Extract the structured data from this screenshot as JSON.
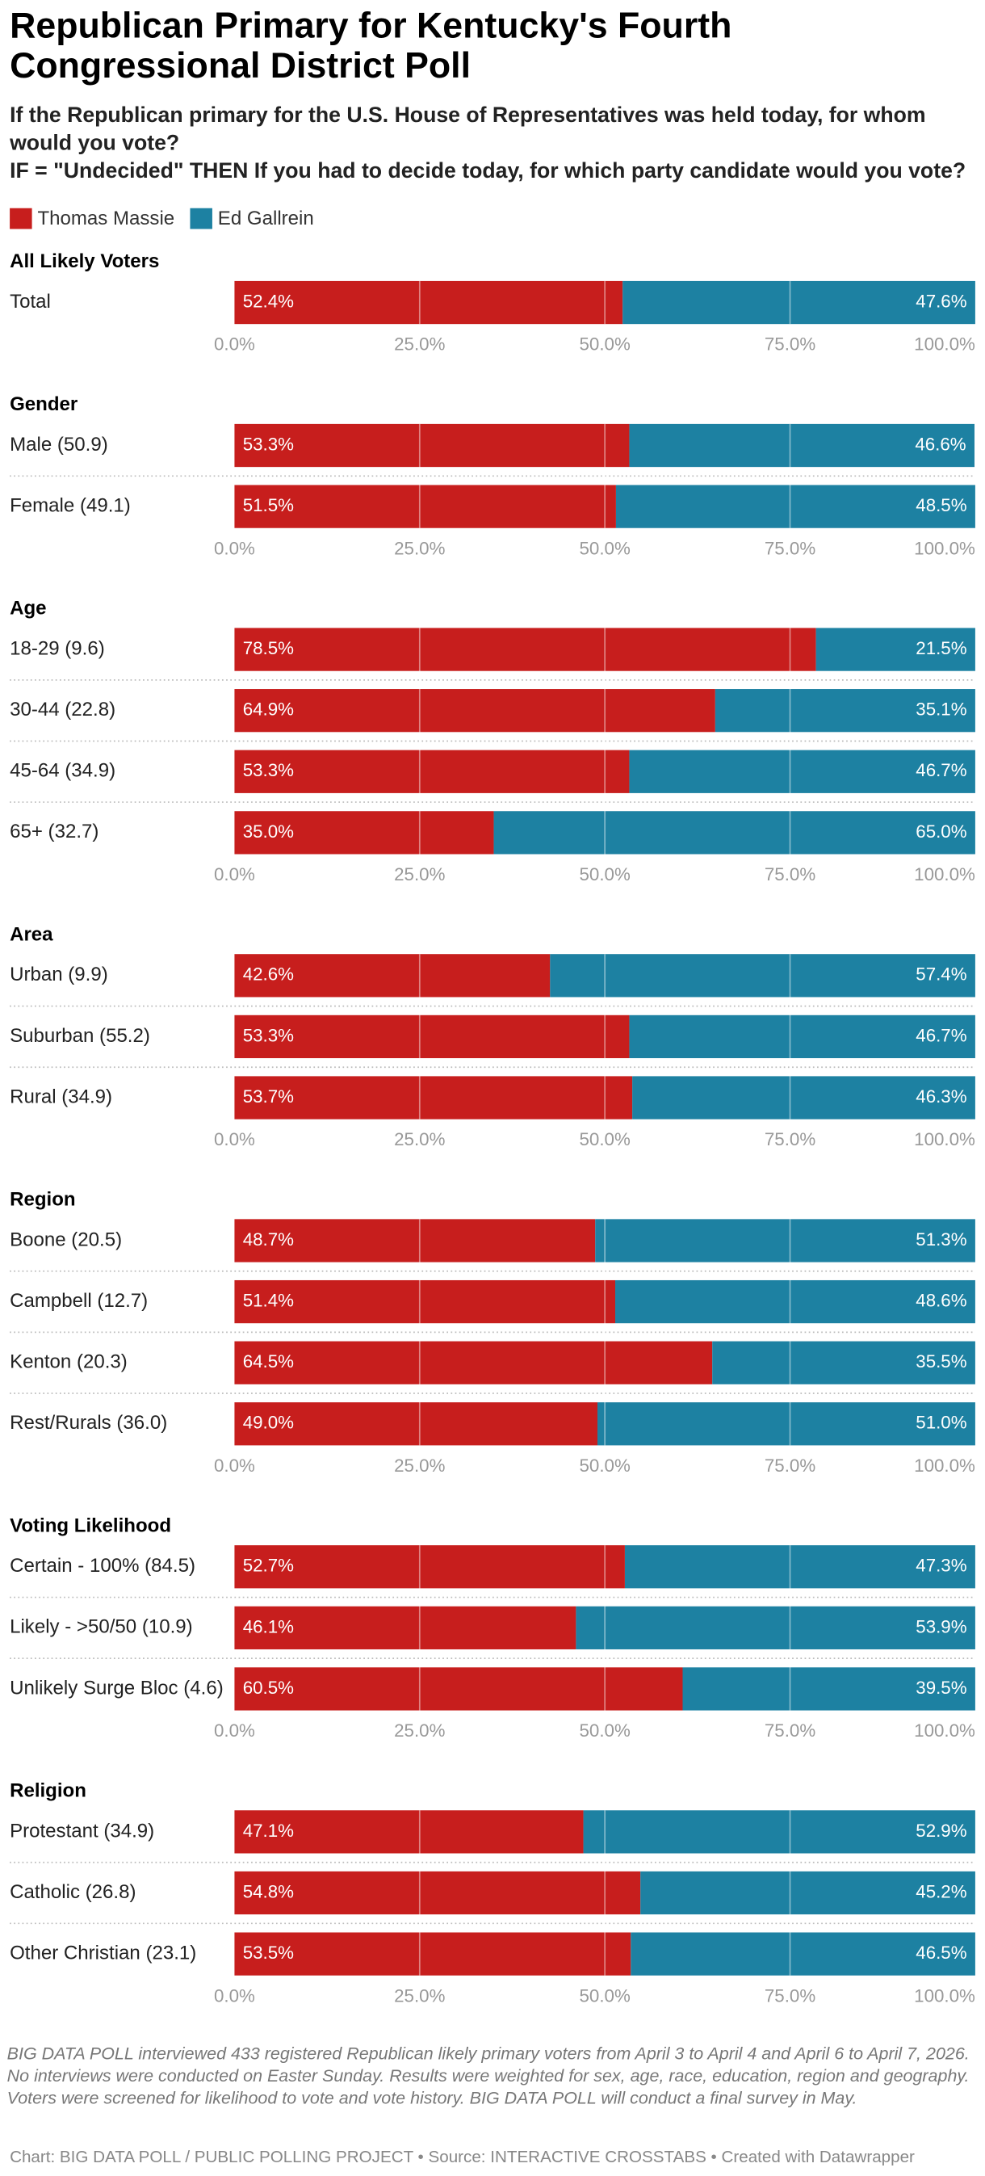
{
  "header": {
    "title": "Republican Primary for Kentucky's Fourth Congressional District Poll",
    "subtitle": [
      "If the Republican primary for the U.S. House of Representatives was held today, for whom would you vote?",
      "IF = \"Undecided\" THEN If you had to decide today, for which party candidate would you vote?"
    ]
  },
  "chart_data": [
    {
      "type": "bar",
      "stacked": true,
      "orientation": "horizontal",
      "title": "All Likely Voters",
      "categories": [
        "Total"
      ],
      "series": [
        {
          "name": "Thomas Massie",
          "color": "#c71e1d",
          "values": [
            52.4
          ],
          "value_labels": [
            "52.4%"
          ]
        },
        {
          "name": "Ed Gallrein",
          "color": "#1d81a2",
          "values": [
            47.6
          ],
          "value_labels": [
            "47.6%"
          ]
        }
      ],
      "xlim": [
        0,
        100
      ],
      "xticks": [
        {
          "value": 0,
          "label": "0.0%"
        },
        {
          "value": 25,
          "label": "25.0%"
        },
        {
          "value": 50,
          "label": "50.0%"
        },
        {
          "value": 75,
          "label": "75.0%"
        },
        {
          "value": 100,
          "label": "100.0%"
        }
      ],
      "grid": true
    },
    {
      "type": "bar",
      "stacked": true,
      "orientation": "horizontal",
      "title": "Gender",
      "categories": [
        "Male (50.9)",
        "Female (49.1)"
      ],
      "series": [
        {
          "name": "Thomas Massie",
          "color": "#c71e1d",
          "values": [
            53.3,
            51.5
          ],
          "value_labels": [
            "53.3%",
            "51.5%"
          ]
        },
        {
          "name": "Ed Gallrein",
          "color": "#1d81a2",
          "values": [
            46.6,
            48.5
          ],
          "value_labels": [
            "46.6%",
            "48.5%"
          ]
        }
      ],
      "xlim": [
        0,
        100
      ],
      "xticks": [
        {
          "value": 0,
          "label": "0.0%"
        },
        {
          "value": 25,
          "label": "25.0%"
        },
        {
          "value": 50,
          "label": "50.0%"
        },
        {
          "value": 75,
          "label": "75.0%"
        },
        {
          "value": 100,
          "label": "100.0%"
        }
      ],
      "grid": true
    },
    {
      "type": "bar",
      "stacked": true,
      "orientation": "horizontal",
      "title": "Age",
      "categories": [
        "18-29 (9.6)",
        "30-44 (22.8)",
        "45-64 (34.9)",
        "65+ (32.7)"
      ],
      "series": [
        {
          "name": "Thomas Massie",
          "color": "#c71e1d",
          "values": [
            78.5,
            64.9,
            53.3,
            35.0
          ],
          "value_labels": [
            "78.5%",
            "64.9%",
            "53.3%",
            "35.0%"
          ]
        },
        {
          "name": "Ed Gallrein",
          "color": "#1d81a2",
          "values": [
            21.5,
            35.1,
            46.7,
            65.0
          ],
          "value_labels": [
            "21.5%",
            "35.1%",
            "46.7%",
            "65.0%"
          ]
        }
      ],
      "xlim": [
        0,
        100
      ],
      "xticks": [
        {
          "value": 0,
          "label": "0.0%"
        },
        {
          "value": 25,
          "label": "25.0%"
        },
        {
          "value": 50,
          "label": "50.0%"
        },
        {
          "value": 75,
          "label": "75.0%"
        },
        {
          "value": 100,
          "label": "100.0%"
        }
      ],
      "grid": true
    },
    {
      "type": "bar",
      "stacked": true,
      "orientation": "horizontal",
      "title": "Area",
      "categories": [
        "Urban (9.9)",
        "Suburban (55.2)",
        "Rural (34.9)"
      ],
      "series": [
        {
          "name": "Thomas Massie",
          "color": "#c71e1d",
          "values": [
            42.6,
            53.3,
            53.7
          ],
          "value_labels": [
            "42.6%",
            "53.3%",
            "53.7%"
          ]
        },
        {
          "name": "Ed Gallrein",
          "color": "#1d81a2",
          "values": [
            57.4,
            46.7,
            46.3
          ],
          "value_labels": [
            "57.4%",
            "46.7%",
            "46.3%"
          ]
        }
      ],
      "xlim": [
        0,
        100
      ],
      "xticks": [
        {
          "value": 0,
          "label": "0.0%"
        },
        {
          "value": 25,
          "label": "25.0%"
        },
        {
          "value": 50,
          "label": "50.0%"
        },
        {
          "value": 75,
          "label": "75.0%"
        },
        {
          "value": 100,
          "label": "100.0%"
        }
      ],
      "grid": true
    },
    {
      "type": "bar",
      "stacked": true,
      "orientation": "horizontal",
      "title": "Region",
      "categories": [
        "Boone (20.5)",
        "Campbell (12.7)",
        "Kenton (20.3)",
        "Rest/Rurals (36.0)"
      ],
      "series": [
        {
          "name": "Thomas Massie",
          "color": "#c71e1d",
          "values": [
            48.7,
            51.4,
            64.5,
            49.0
          ],
          "value_labels": [
            "48.7%",
            "51.4%",
            "64.5%",
            "49.0%"
          ]
        },
        {
          "name": "Ed Gallrein",
          "color": "#1d81a2",
          "values": [
            51.3,
            48.6,
            35.5,
            51.0
          ],
          "value_labels": [
            "51.3%",
            "48.6%",
            "35.5%",
            "51.0%"
          ]
        }
      ],
      "xlim": [
        0,
        100
      ],
      "xticks": [
        {
          "value": 0,
          "label": "0.0%"
        },
        {
          "value": 25,
          "label": "25.0%"
        },
        {
          "value": 50,
          "label": "50.0%"
        },
        {
          "value": 75,
          "label": "75.0%"
        },
        {
          "value": 100,
          "label": "100.0%"
        }
      ],
      "grid": true
    },
    {
      "type": "bar",
      "stacked": true,
      "orientation": "horizontal",
      "title": "Voting Likelihood",
      "categories": [
        "Certain - 100% (84.5)",
        "Likely - >50/50 (10.9)",
        "Unlikely Surge Bloc (4.6)"
      ],
      "series": [
        {
          "name": "Thomas Massie",
          "color": "#c71e1d",
          "values": [
            52.7,
            46.1,
            60.5
          ],
          "value_labels": [
            "52.7%",
            "46.1%",
            "60.5%"
          ]
        },
        {
          "name": "Ed Gallrein",
          "color": "#1d81a2",
          "values": [
            47.3,
            53.9,
            39.5
          ],
          "value_labels": [
            "47.3%",
            "53.9%",
            "39.5%"
          ]
        }
      ],
      "xlim": [
        0,
        100
      ],
      "xticks": [
        {
          "value": 0,
          "label": "0.0%"
        },
        {
          "value": 25,
          "label": "25.0%"
        },
        {
          "value": 50,
          "label": "50.0%"
        },
        {
          "value": 75,
          "label": "75.0%"
        },
        {
          "value": 100,
          "label": "100.0%"
        }
      ],
      "grid": true
    },
    {
      "type": "bar",
      "stacked": true,
      "orientation": "horizontal",
      "title": "Religion",
      "categories": [
        "Protestant (34.9)",
        "Catholic (26.8)",
        "Other Christian (23.1)"
      ],
      "series": [
        {
          "name": "Thomas Massie",
          "color": "#c71e1d",
          "values": [
            47.1,
            54.8,
            53.5
          ],
          "value_labels": [
            "47.1%",
            "54.8%",
            "53.5%"
          ]
        },
        {
          "name": "Ed Gallrein",
          "color": "#1d81a2",
          "values": [
            52.9,
            45.2,
            46.5
          ],
          "value_labels": [
            "52.9%",
            "45.2%",
            "46.5%"
          ]
        }
      ],
      "xlim": [
        0,
        100
      ],
      "xticks": [
        {
          "value": 0,
          "label": "0.0%"
        },
        {
          "value": 25,
          "label": "25.0%"
        },
        {
          "value": 50,
          "label": "50.0%"
        },
        {
          "value": 75,
          "label": "75.0%"
        },
        {
          "value": 100,
          "label": "100.0%"
        }
      ],
      "grid": true
    }
  ],
  "notes": "BIG DATA POLL interviewed 433 registered Republican likely primary voters from April 3 to April 4 and April 6 to April 7, 2026. No interviews were conducted on Easter Sunday. Results were weighted for sex, age, race, education, region and geography. Voters were screened for likelihood to vote and vote history. BIG DATA POLL will conduct a final survey in May.",
  "footer": "Chart: BIG DATA POLL / PUBLIC POLLING PROJECT • Source: INTERACTIVE CROSSTABS • Created with Datawrapper"
}
